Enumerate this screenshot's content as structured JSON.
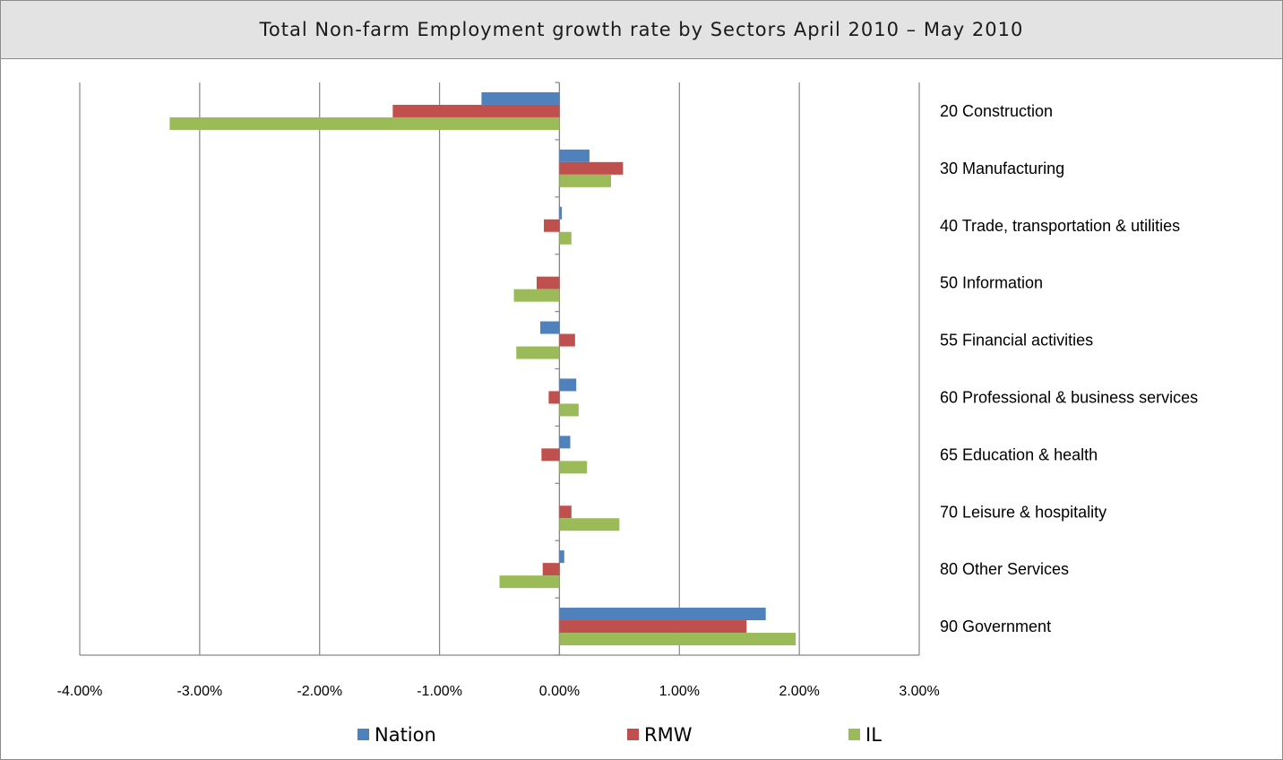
{
  "chart_data": {
    "type": "bar",
    "orientation": "horizontal",
    "title": "Total Non-farm Employment growth rate by Sectors April 2010 – May 2010",
    "categories": [
      "20 Construction",
      "30 Manufacturing",
      "40 Trade, transportation & utilities",
      "50 Information",
      "55 Financial activities",
      "60 Professional & business services",
      "65 Education & health",
      "70 Leisure & hospitality",
      "80 Other Services",
      "90 Government"
    ],
    "series": [
      {
        "name": "Nation",
        "color": "#4f81bd",
        "values": [
          -0.65,
          0.25,
          0.02,
          0.0,
          -0.16,
          0.14,
          0.09,
          0.0,
          0.04,
          1.72
        ]
      },
      {
        "name": "RMW",
        "color": "#c0504d",
        "values": [
          -1.39,
          0.53,
          -0.13,
          -0.19,
          0.13,
          -0.09,
          -0.15,
          0.1,
          -0.14,
          1.56
        ]
      },
      {
        "name": "IL",
        "color": "#9bbb59",
        "values": [
          -3.25,
          0.43,
          0.1,
          -0.38,
          -0.36,
          0.16,
          0.23,
          0.5,
          -0.5,
          1.97
        ]
      }
    ],
    "xlim": [
      -4,
      3
    ],
    "x_ticks": [
      "-4.00%",
      "-3.00%",
      "-2.00%",
      "-1.00%",
      "0.00%",
      "1.00%",
      "2.00%",
      "3.00%"
    ],
    "x_unit": "%",
    "grid": true,
    "legend_position": "bottom"
  }
}
